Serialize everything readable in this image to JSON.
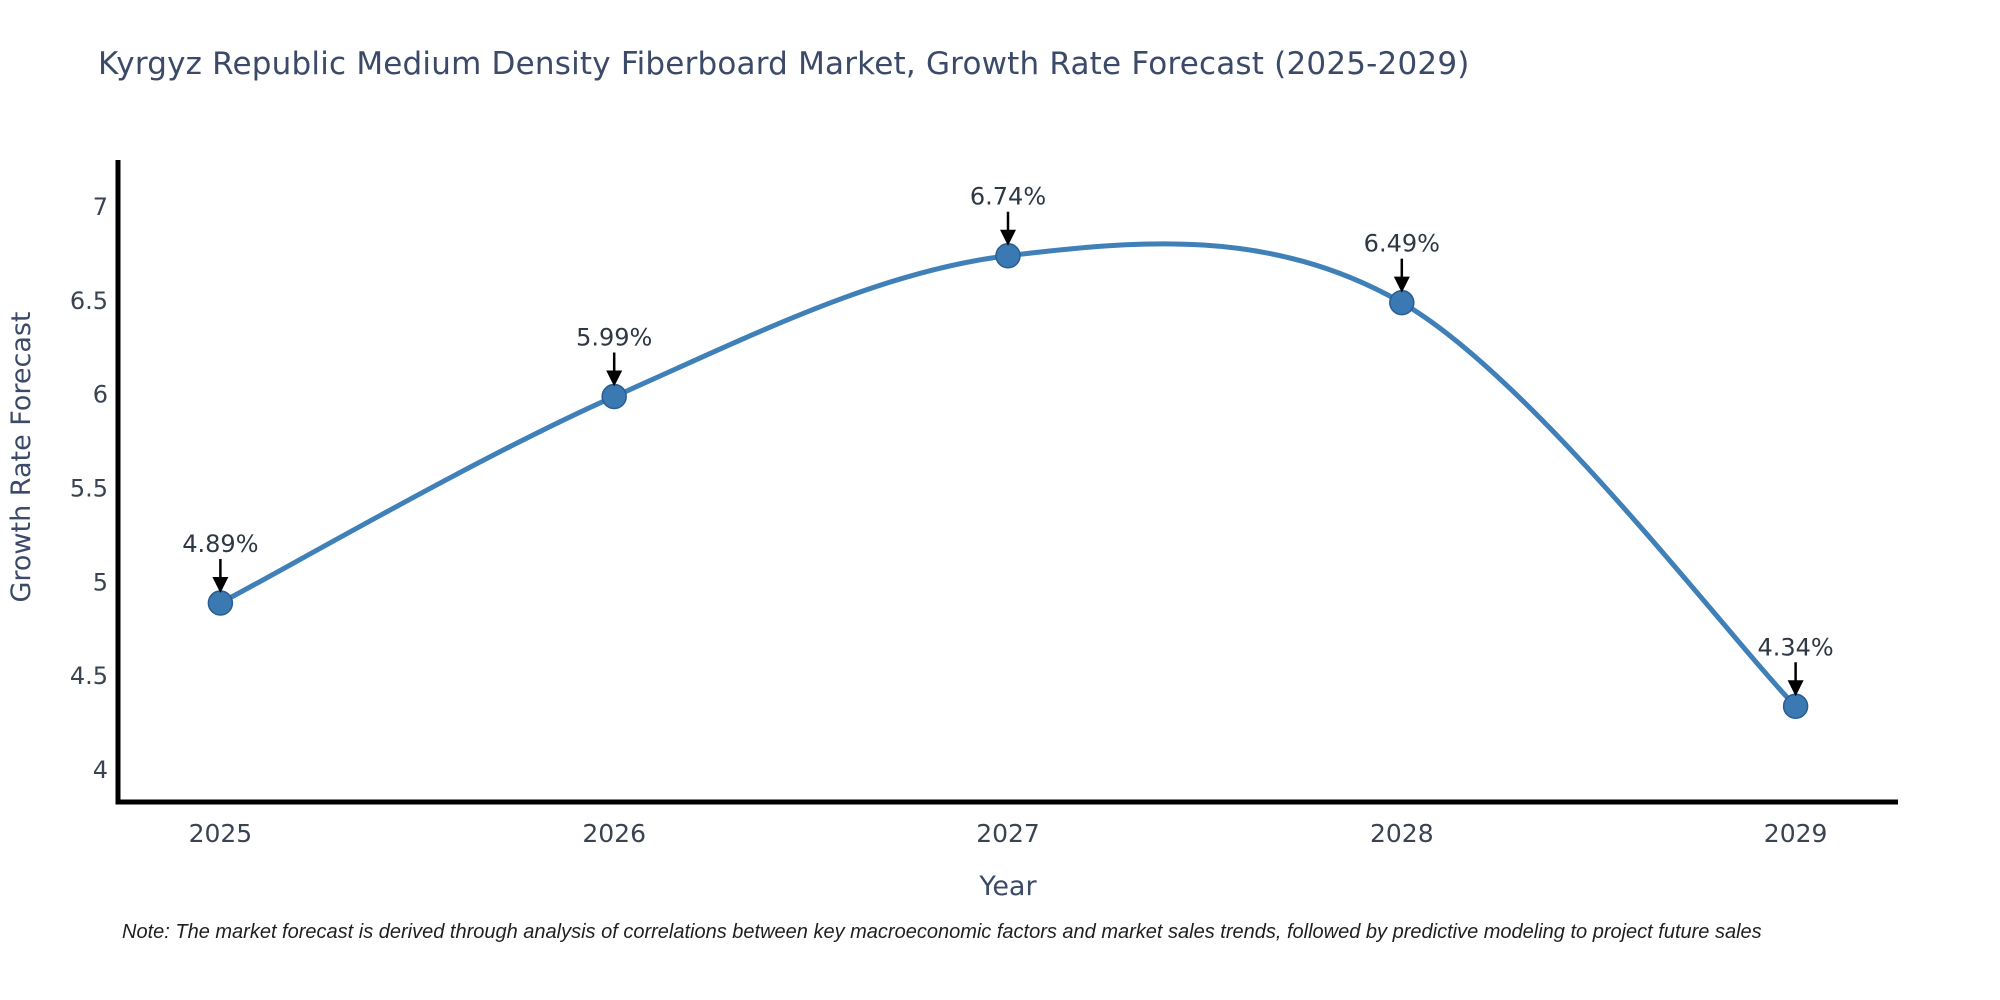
{
  "title": "Kyrgyz Republic Medium Density Fiberboard Market, Growth Rate Forecast (2025-2029)",
  "note": "Note: The market forecast is derived through analysis of correlations between key macroeconomic factors and market sales trends, followed by predictive modeling to project future sales",
  "colors": {
    "line": "#4080b8",
    "marker_fill": "#3b79b3",
    "marker_edge": "#2a5d8f",
    "axis": "#000000",
    "tick_text": "#3a4352",
    "axis_label_text": "#3b4a68",
    "annotation_text": "#2e3744",
    "arrow": "#000000",
    "background": "#ffffff"
  },
  "chart_data": {
    "type": "line",
    "line_shape": "spline",
    "markers": true,
    "x": [
      2025,
      2026,
      2027,
      2028,
      2029
    ],
    "values": [
      4.89,
      5.99,
      6.74,
      6.49,
      4.34
    ],
    "point_labels": [
      "4.89%",
      "5.99%",
      "6.74%",
      "6.49%",
      "4.34%"
    ],
    "title": "Kyrgyz Republic Medium Density Fiberboard Market, Growth Rate Forecast (2025-2029)",
    "xlabel": "Year",
    "ylabel": "Growth Rate Forecast",
    "xticks": [
      "2025",
      "2026",
      "2027",
      "2028",
      "2029"
    ],
    "yticks": [
      4,
      4.5,
      5,
      5.5,
      6,
      6.5,
      7
    ],
    "xlim": [
      2024.74,
      2029.26
    ],
    "ylim": [
      3.83,
      7.25
    ],
    "grid": false,
    "legend": "none"
  }
}
